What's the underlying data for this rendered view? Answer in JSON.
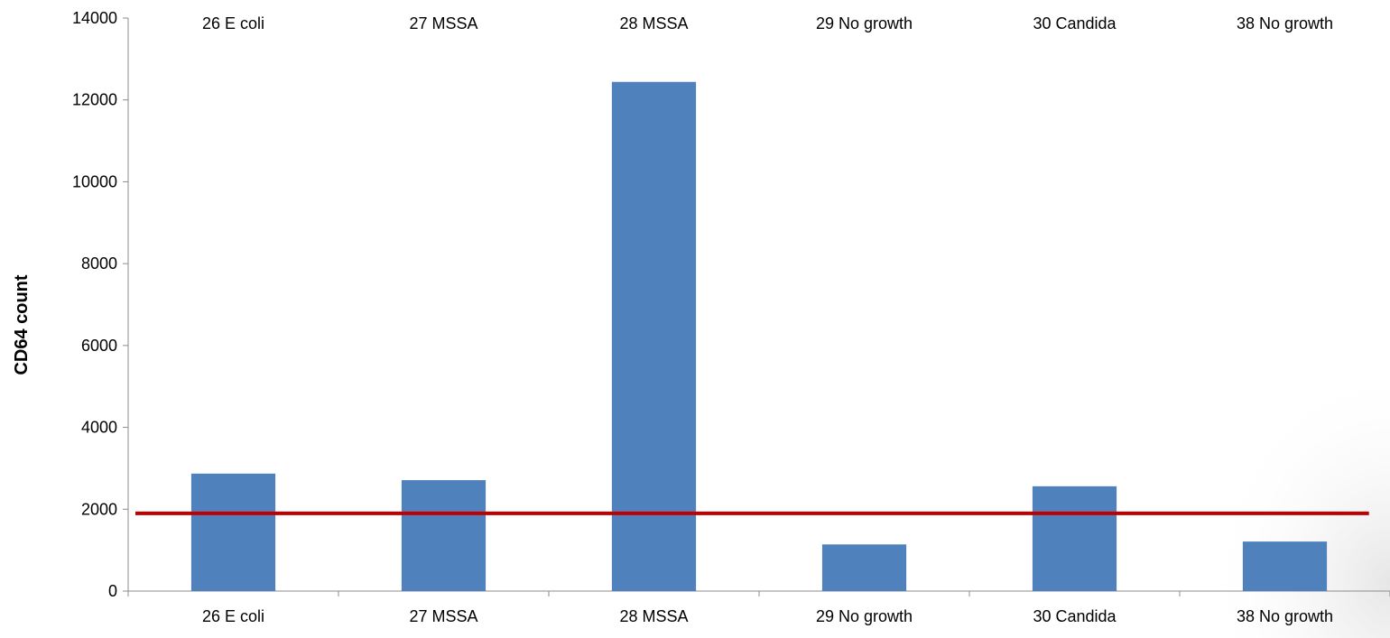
{
  "chart_data": {
    "type": "bar",
    "categories": [
      "26 E coli",
      "27 MSSA",
      "28 MSSA",
      "29 No growth",
      "30 Candida",
      "38 No growth"
    ],
    "values": [
      2870,
      2710,
      12440,
      1140,
      2560,
      1210
    ],
    "title": "",
    "xlabel": "",
    "ylabel": "CD64 count",
    "ylim": [
      0,
      14000
    ],
    "yticks": [
      0,
      2000,
      4000,
      6000,
      8000,
      10000,
      12000,
      14000
    ],
    "threshold": 1900,
    "grid": false,
    "legend": "none",
    "bar_color": "#4f81bd",
    "threshold_color": "#c00000"
  }
}
